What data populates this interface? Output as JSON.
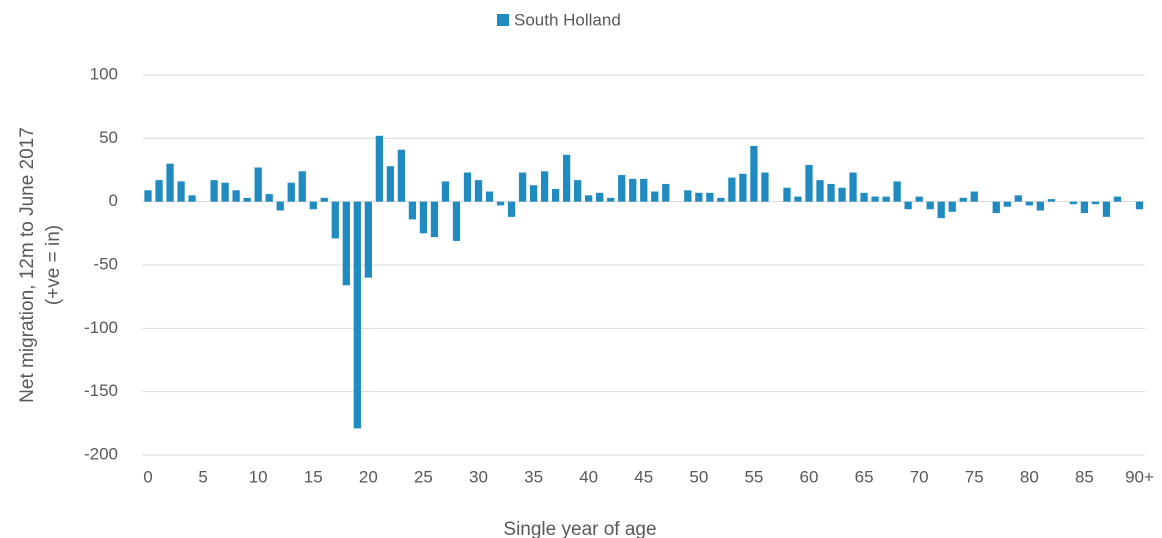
{
  "chart_data": {
    "type": "bar",
    "x_label": "Single year of age",
    "y_label": [
      "Net migration, 12m to June 2017",
      "(+ve = in)"
    ],
    "categories": [
      "0",
      null,
      null,
      null,
      null,
      "5",
      null,
      null,
      null,
      null,
      "10",
      null,
      null,
      null,
      null,
      "15",
      null,
      null,
      null,
      null,
      "20",
      null,
      null,
      null,
      null,
      "25",
      null,
      null,
      null,
      null,
      "30",
      null,
      null,
      null,
      null,
      "35",
      null,
      null,
      null,
      null,
      "40",
      null,
      null,
      null,
      null,
      "45",
      null,
      null,
      null,
      null,
      "50",
      null,
      null,
      null,
      null,
      "55",
      null,
      null,
      null,
      null,
      "60",
      null,
      null,
      null,
      null,
      "65",
      null,
      null,
      null,
      null,
      "70",
      null,
      null,
      null,
      null,
      "75",
      null,
      null,
      null,
      null,
      "80",
      null,
      null,
      null,
      null,
      "85",
      null,
      null,
      null,
      null,
      "90+"
    ],
    "series": [
      {
        "name": "South Holland",
        "color": "#1f8bc1",
        "values": [
          9,
          17,
          30,
          16,
          5,
          0,
          17,
          15,
          9,
          3,
          27,
          6,
          -7,
          15,
          24,
          -6,
          3,
          -29,
          -66,
          -179,
          -60,
          52,
          28,
          41,
          -14,
          -25,
          -28,
          16,
          -31,
          23,
          17,
          8,
          -3,
          -12,
          23,
          13,
          24,
          10,
          37,
          17,
          5,
          7,
          3,
          21,
          18,
          18,
          8,
          14,
          0,
          9,
          7,
          7,
          3,
          19,
          22,
          44,
          23,
          0,
          11,
          4,
          29,
          17,
          14,
          11,
          23,
          7,
          4,
          4,
          16,
          -6,
          4,
          -6,
          -13,
          -8,
          3,
          8,
          0,
          -9,
          -4,
          5,
          -3,
          -7,
          2,
          0,
          -2,
          -9,
          -2,
          -12,
          4,
          0,
          -6
        ]
      }
    ],
    "ylim": [
      -200,
      100
    ],
    "yticks": [
      -200,
      -150,
      -100,
      -50,
      0,
      50,
      100
    ],
    "grid": true,
    "legend": "top"
  }
}
